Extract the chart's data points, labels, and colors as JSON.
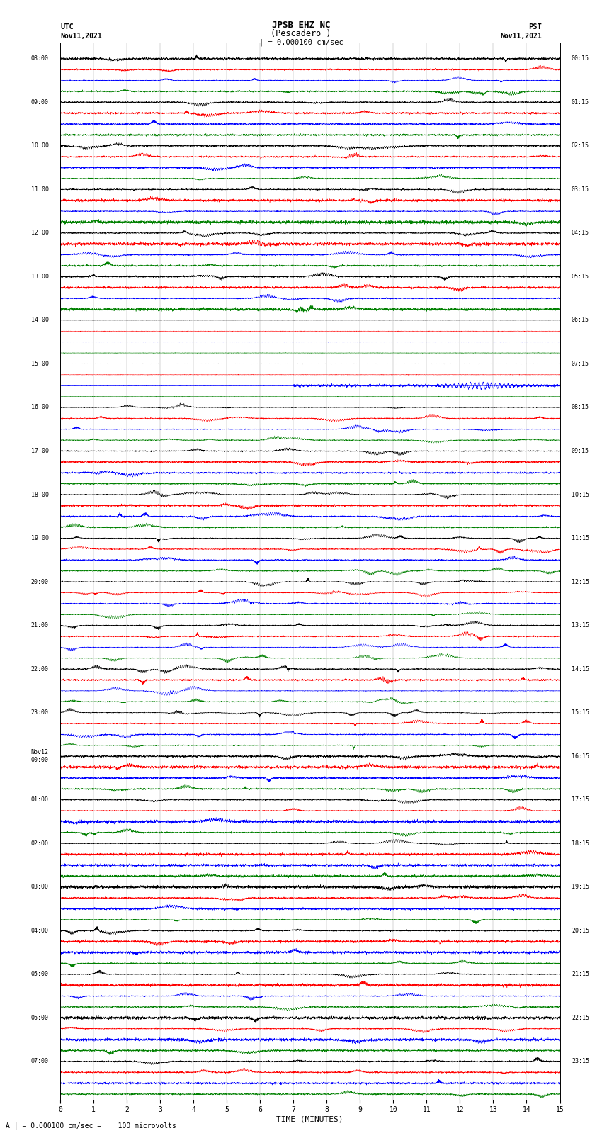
{
  "title_line1": "JPSB EHZ NC",
  "title_line2": "(Pescadero )",
  "title_line3": "| = 0.000100 cm/sec",
  "label_left_top1": "UTC",
  "label_left_top2": "Nov11,2021",
  "label_right_top1": "PST",
  "label_right_top2": "Nov11,2021",
  "xlabel": "TIME (MINUTES)",
  "bottom_label": "A | = 0.000100 cm/sec =    100 microvolts",
  "utc_hour_labels": [
    "08:00",
    "09:00",
    "10:00",
    "11:00",
    "12:00",
    "13:00",
    "14:00",
    "15:00",
    "16:00",
    "17:00",
    "18:00",
    "19:00",
    "20:00",
    "21:00",
    "22:00",
    "23:00",
    "Nov12\n00:00",
    "01:00",
    "02:00",
    "03:00",
    "04:00",
    "05:00",
    "06:00",
    "07:00"
  ],
  "pst_hour_labels": [
    "00:15",
    "01:15",
    "02:15",
    "03:15",
    "04:15",
    "05:15",
    "06:15",
    "07:15",
    "08:15",
    "09:15",
    "10:15",
    "11:15",
    "12:15",
    "13:15",
    "14:15",
    "15:15",
    "16:15",
    "17:15",
    "18:15",
    "19:15",
    "20:15",
    "21:15",
    "22:15",
    "23:15"
  ],
  "colors": [
    "black",
    "red",
    "blue",
    "green"
  ],
  "n_hours": 24,
  "traces_per_hour": 4,
  "n_points": 4000,
  "x_min": 0,
  "x_max": 15,
  "bg_color": "white",
  "seed": 12345,
  "quiet_hours": [
    6,
    7
  ],
  "high_amp_hours": [
    8,
    9,
    10,
    11,
    12,
    13,
    14,
    15
  ],
  "very_high_amp_hours": [
    11,
    12,
    13,
    14,
    15
  ],
  "fig_width": 8.5,
  "fig_height": 16.13,
  "dpi": 100
}
